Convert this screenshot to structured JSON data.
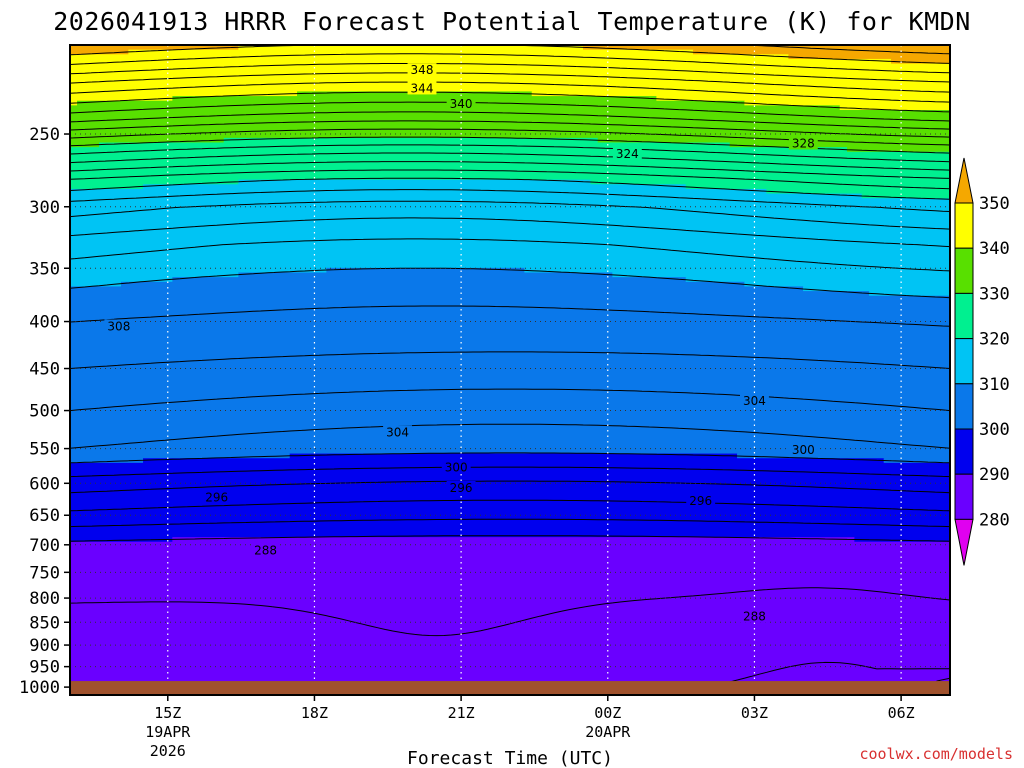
{
  "title": "2026041913 HRRR Forecast Potential Temperature (K) for KMDN",
  "credit": "coolwx.com/models",
  "chart_data": {
    "type": "contour",
    "title": "2026041913 HRRR Forecast Potential Temperature (K) for KMDN",
    "xlabel": "Forecast Time (UTC)",
    "ylabel": "",
    "x_ticks": [
      {
        "label": "15Z",
        "sub1": "19APR",
        "sub2": "2026"
      },
      {
        "label": "18Z",
        "sub1": "",
        "sub2": ""
      },
      {
        "label": "21Z",
        "sub1": "",
        "sub2": ""
      },
      {
        "label": "00Z",
        "sub1": "20APR",
        "sub2": ""
      },
      {
        "label": "03Z",
        "sub1": "",
        "sub2": ""
      },
      {
        "label": "06Z",
        "sub1": "",
        "sub2": ""
      }
    ],
    "x_hours": [
      15,
      18,
      21,
      24,
      27,
      30
    ],
    "xlim_hours": [
      13,
      31
    ],
    "y_ticks": [
      "250",
      "300",
      "350",
      "400",
      "450",
      "500",
      "550",
      "600",
      "650",
      "700",
      "750",
      "800",
      "850",
      "900",
      "950",
      "1000"
    ],
    "ylim": [
      200,
      1020
    ],
    "y_scale": "log",
    "colorbar": {
      "labels": [
        "350",
        "340",
        "330",
        "320",
        "310",
        "300",
        "290",
        "280"
      ],
      "bands": [
        {
          "lo": 350,
          "hi": 360,
          "color": "#f5a800"
        },
        {
          "lo": 340,
          "hi": 350,
          "color": "#ffff00"
        },
        {
          "lo": 330,
          "hi": 340,
          "color": "#58e000"
        },
        {
          "lo": 320,
          "hi": 330,
          "color": "#00f090"
        },
        {
          "lo": 310,
          "hi": 320,
          "color": "#00c4f4"
        },
        {
          "lo": 300,
          "hi": 310,
          "color": "#0a78ea"
        },
        {
          "lo": 290,
          "hi": 300,
          "color": "#0000ee"
        },
        {
          "lo": 280,
          "hi": 290,
          "color": "#6a00ff"
        },
        {
          "lo": 270,
          "hi": 280,
          "color": "#e000f0"
        }
      ]
    },
    "contour_interval": 2,
    "contour_labels": [
      {
        "value": "348",
        "hour": 20.2,
        "p": 213
      },
      {
        "value": "344",
        "hour": 20.2,
        "p": 223
      },
      {
        "value": "340",
        "hour": 21.0,
        "p": 232
      },
      {
        "value": "328",
        "hour": 28.0,
        "p": 256
      },
      {
        "value": "324",
        "hour": 24.4,
        "p": 263
      },
      {
        "value": "308",
        "hour": 14.0,
        "p": 405
      },
      {
        "value": "304",
        "hour": 27.0,
        "p": 488
      },
      {
        "value": "304",
        "hour": 19.7,
        "p": 528
      },
      {
        "value": "300",
        "hour": 28.0,
        "p": 552
      },
      {
        "value": "300",
        "hour": 20.9,
        "p": 577
      },
      {
        "value": "296",
        "hour": 21.0,
        "p": 607
      },
      {
        "value": "296",
        "hour": 16.0,
        "p": 622
      },
      {
        "value": "296",
        "hour": 25.9,
        "p": 627
      },
      {
        "value": "288",
        "hour": 17.0,
        "p": 710
      },
      {
        "value": "288",
        "hour": 27.0,
        "p": 838
      }
    ],
    "ground_color": "#a0522d",
    "surface_pressure": 985
  }
}
